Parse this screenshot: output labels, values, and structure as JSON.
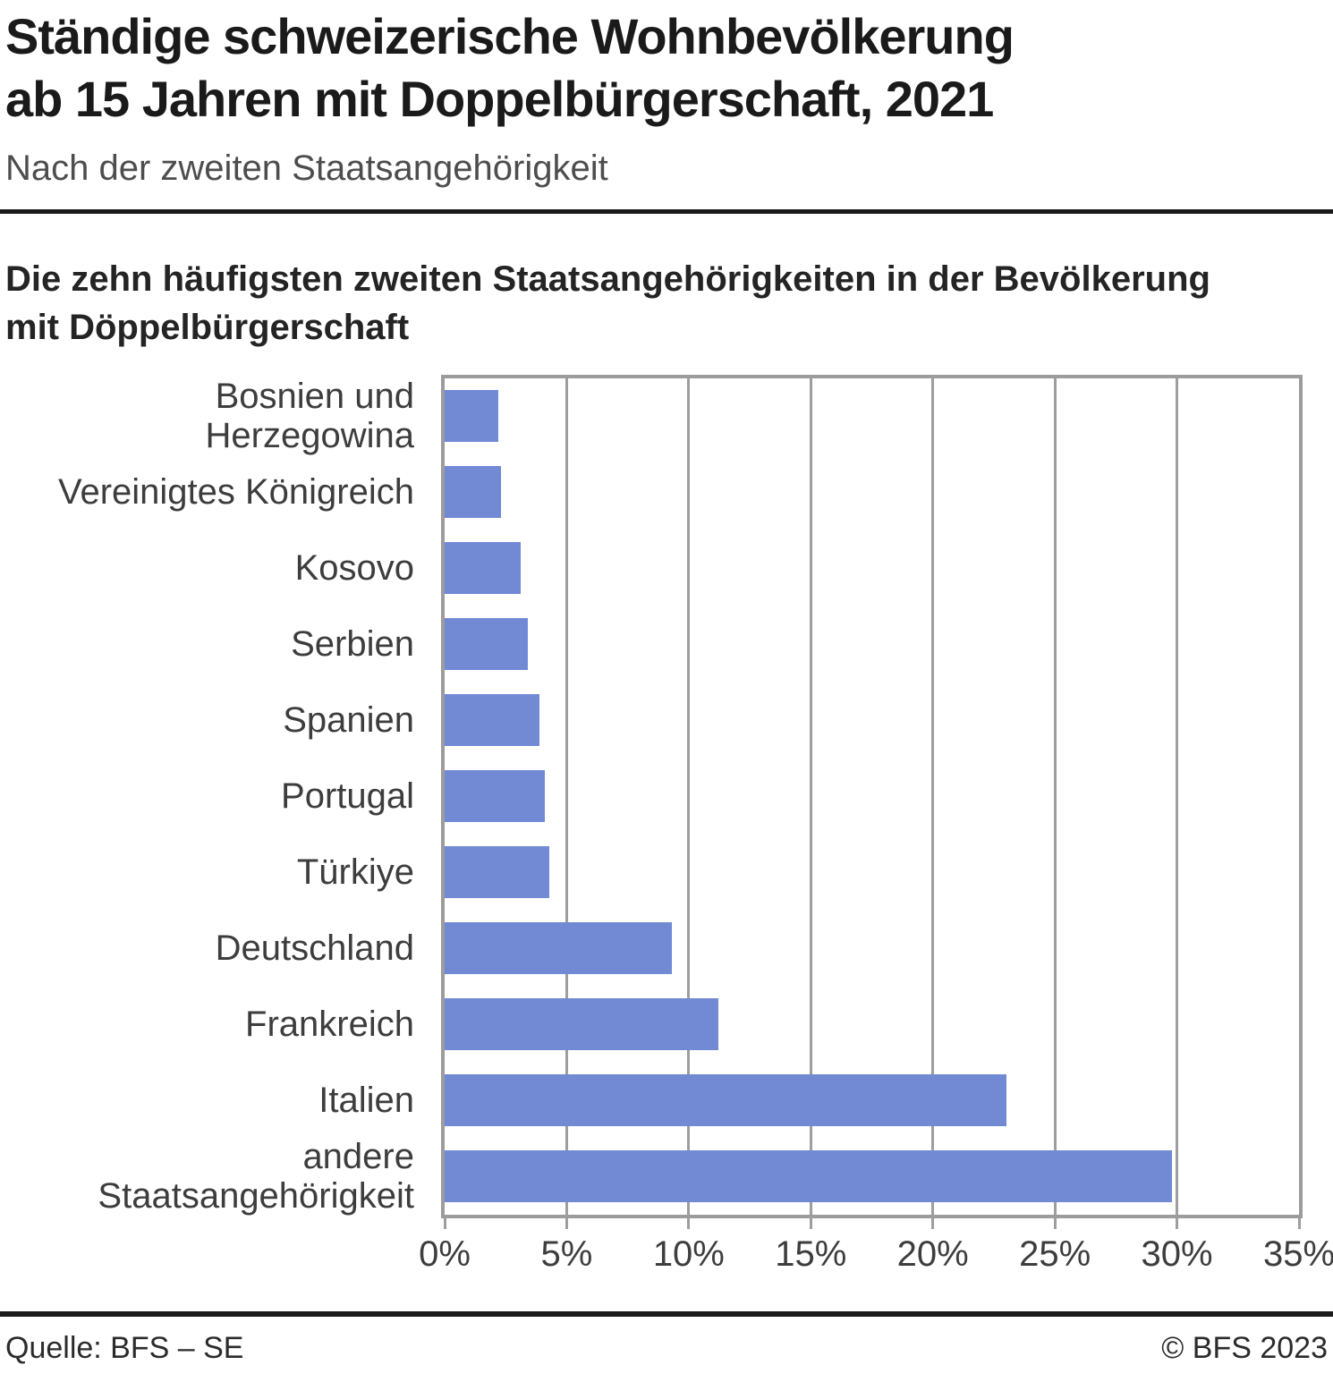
{
  "header": {
    "title": "Ständige schweizerische Wohnbevölkerung\nab 15 Jahren mit Doppelbürgerschaft, 2021",
    "subtitle": "Nach der zweiten Staatsangehörigkeit"
  },
  "chart": {
    "heading": "Die zehn häufigsten zweiten Staatsangehörigkeiten in der Bevölkerung\nmit Döppelbürgerschaft"
  },
  "chart_data": {
    "type": "bar",
    "orientation": "horizontal",
    "categories": [
      "Bosnien und Herzegowina",
      "Vereinigtes Königreich",
      "Kosovo",
      "Serbien",
      "Spanien",
      "Portugal",
      "Türkiye",
      "Deutschland",
      "Frankreich",
      "Italien",
      "andere\nStaatsangehörigkeit"
    ],
    "values": [
      2.2,
      2.3,
      3.1,
      3.4,
      3.9,
      4.1,
      4.3,
      9.3,
      11.2,
      23.0,
      29.8
    ],
    "unit": "%",
    "xlim": [
      0,
      35
    ],
    "x_tick_step": 5,
    "x_tick_labels": [
      "0%",
      "5%",
      "10%",
      "15%",
      "20%",
      "25%",
      "30%",
      "35%"
    ],
    "grid": true,
    "legend": "none",
    "bar_color": "#728ad4",
    "axis_color": "#9e9e9e"
  },
  "footer": {
    "source": "Quelle: BFS – SE",
    "copyright": "© BFS 2023"
  }
}
